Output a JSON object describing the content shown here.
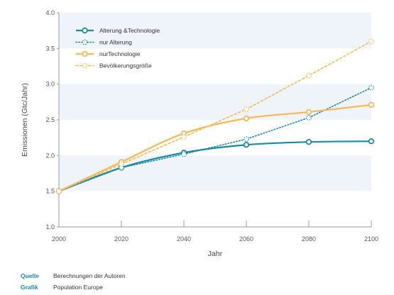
{
  "chart_data": {
    "type": "line",
    "xlabel": "Jahr",
    "ylabel": "Emissionen (Gtc/Jahr)",
    "x": [
      2000,
      2020,
      2040,
      2060,
      2080,
      2100
    ],
    "xticks": [
      "2000",
      "2020",
      "2040",
      "2060",
      "2080",
      "2100"
    ],
    "yticks": [
      "1.0",
      "1.5",
      "2.0",
      "2.5",
      "3.0",
      "3.5",
      "4.0"
    ],
    "xlim": [
      2000,
      2100
    ],
    "ylim": [
      1.0,
      4.0
    ],
    "grid": "horizontal bands",
    "legend_position": "top-left",
    "series": [
      {
        "name": "Alterung &Technologie",
        "values": [
          1.5,
          1.83,
          2.04,
          2.15,
          2.19,
          2.2
        ],
        "color": "#1a8aa3",
        "style": "solid"
      },
      {
        "name": "nur Alterung",
        "values": [
          1.5,
          1.83,
          2.02,
          2.23,
          2.53,
          2.95
        ],
        "color": "#1a8aa3",
        "style": "dotted"
      },
      {
        "name": "nurTechnologie",
        "values": [
          1.5,
          1.91,
          2.31,
          2.52,
          2.61,
          2.71
        ],
        "color": "#f5b955",
        "style": "solid"
      },
      {
        "name": "Bevölkerungsgröße",
        "values": [
          1.5,
          1.88,
          2.26,
          2.65,
          3.12,
          3.6
        ],
        "color": "#f5b955",
        "style": "dashed"
      }
    ]
  },
  "footer": {
    "source_label": "Quelle",
    "source_value": "Berechnungen der Autoren",
    "graphic_label": "Grafik",
    "graphic_value": "Population Europe"
  }
}
